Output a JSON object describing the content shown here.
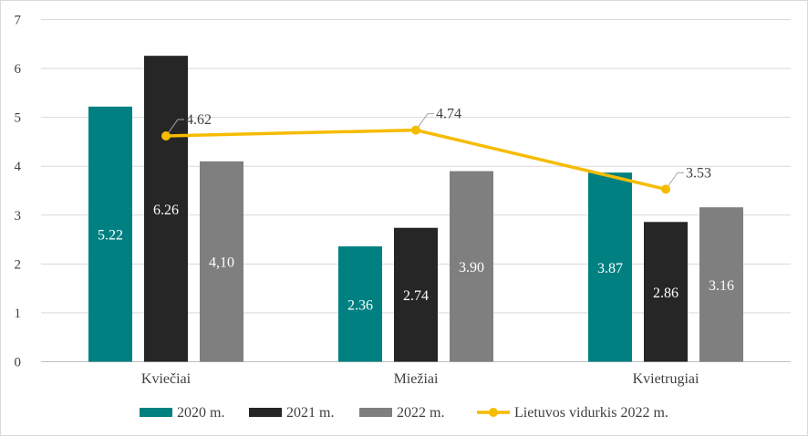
{
  "chart_data": {
    "type": "bar",
    "title": "",
    "xlabel": "",
    "ylabel": "",
    "ylim": [
      0,
      7
    ],
    "yticks": [
      "0",
      "1",
      "2",
      "3",
      "4",
      "5",
      "6",
      "7"
    ],
    "grid": true,
    "legend_position": "bottom",
    "categories": [
      "Kviečiai",
      "Miežiai",
      "Kvietrugiai"
    ],
    "series": [
      {
        "name": "2020 m.",
        "values": [
          5.22,
          2.36,
          3.87
        ],
        "labels": [
          "5.22",
          "2.36",
          "3.87"
        ],
        "color": "#008080"
      },
      {
        "name": "2021 m.",
        "values": [
          6.26,
          2.74,
          2.86
        ],
        "labels": [
          "6.26",
          "2.74",
          "2.86"
        ],
        "color": "#262626"
      },
      {
        "name": "2022 m.",
        "values": [
          4.1,
          3.9,
          3.16
        ],
        "labels": [
          "4,10",
          "3.90",
          "3.16"
        ],
        "color": "#7f7f7f"
      }
    ],
    "line_series": {
      "name": "Lietuvos vidurkis 2022 m.",
      "values": [
        4.62,
        4.74,
        3.53
      ],
      "labels": [
        "4.62",
        "4.74",
        "3.53"
      ],
      "color": "#f5bc00"
    }
  }
}
